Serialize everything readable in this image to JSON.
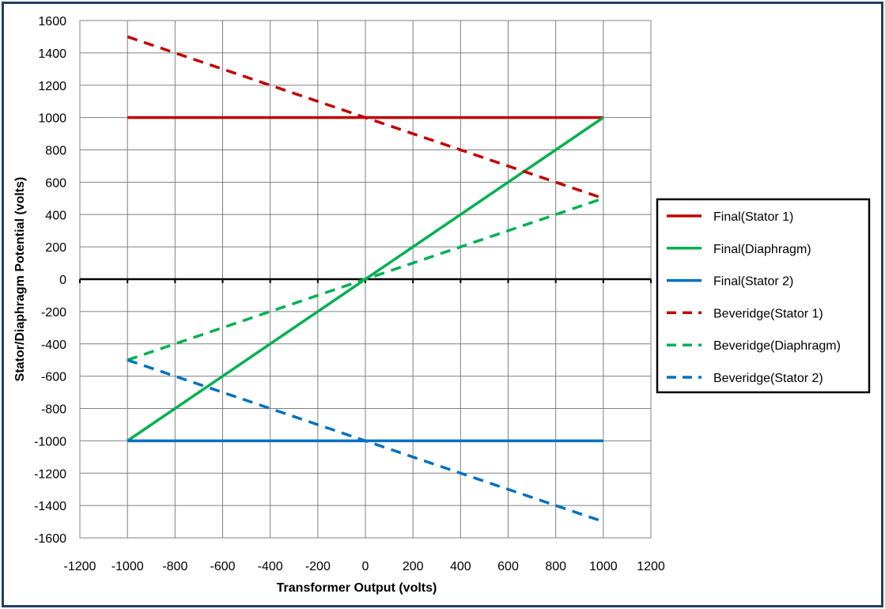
{
  "chart_data": {
    "type": "line",
    "title": "",
    "xlabel": "Transformer Output (volts)",
    "ylabel": "Stator/Diaphragm Potential (volts)",
    "xlim": [
      -1200,
      1200
    ],
    "ylim": [
      -1600,
      1600
    ],
    "xticks": [
      -1200,
      -1000,
      -800,
      -600,
      -400,
      -200,
      0,
      200,
      400,
      600,
      800,
      1000,
      1200
    ],
    "yticks": [
      -1600,
      -1400,
      -1200,
      -1000,
      -800,
      -600,
      -400,
      -200,
      0,
      200,
      400,
      600,
      800,
      1000,
      1200,
      1400,
      1600
    ],
    "grid": true,
    "legend_position": "right",
    "series": [
      {
        "name": "Final(Stator 1)",
        "color": "#c00000",
        "dashed": false,
        "x": [
          -1000,
          1000
        ],
        "y": [
          1000,
          1000
        ]
      },
      {
        "name": "Final(Diaphragm)",
        "color": "#00b050",
        "dashed": false,
        "x": [
          -1000,
          1000
        ],
        "y": [
          -1000,
          1000
        ]
      },
      {
        "name": "Final(Stator 2)",
        "color": "#0070c0",
        "dashed": false,
        "x": [
          -1000,
          1000
        ],
        "y": [
          -1000,
          -1000
        ]
      },
      {
        "name": "Beveridge(Stator 1)",
        "color": "#c00000",
        "dashed": true,
        "x": [
          -1000,
          1000
        ],
        "y": [
          1500,
          500
        ]
      },
      {
        "name": "Beveridge(Diaphragm)",
        "color": "#00b050",
        "dashed": true,
        "x": [
          -1000,
          1000
        ],
        "y": [
          -500,
          500
        ]
      },
      {
        "name": "Beveridge(Stator 2)",
        "color": "#0070c0",
        "dashed": true,
        "x": [
          -1000,
          1000
        ],
        "y": [
          -500,
          -1500
        ]
      }
    ]
  }
}
